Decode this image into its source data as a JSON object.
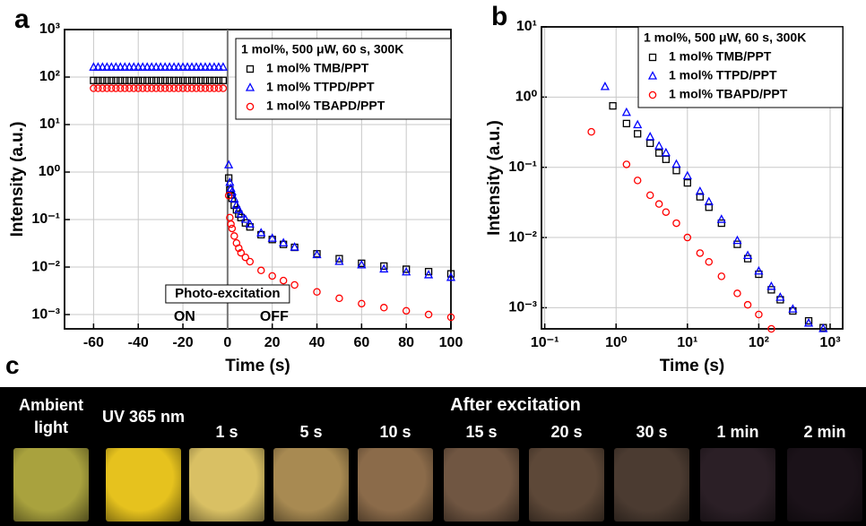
{
  "chart_data": [
    {
      "type": "scatter",
      "panel_label": "a",
      "x_label": "Time (s)",
      "y_label": "Intensity (a.u.)",
      "legend_title": "1 mol%, 500 μW, 60 s, 300K",
      "legend": "upper right",
      "grid": true,
      "ylog": true,
      "xlog": false,
      "annotations": [
        "Photo-excitation",
        "ON",
        "OFF"
      ],
      "vline_x": 0,
      "xlim": [
        -73,
        100
      ],
      "xticks": [
        -60,
        -40,
        -20,
        0,
        20,
        40,
        60,
        80,
        100
      ],
      "ylim": [
        0.0005,
        1000
      ],
      "yticks": [
        {
          "value": 0.001,
          "label": "10⁻³"
        },
        {
          "value": 0.01,
          "label": "10⁻²"
        },
        {
          "value": 0.1,
          "label": "10⁻¹"
        },
        {
          "value": 1,
          "label": "10⁰"
        },
        {
          "value": 10,
          "label": "10¹"
        },
        {
          "value": 100,
          "label": "10²"
        },
        {
          "value": 1000,
          "label": "10³"
        }
      ],
      "x": [
        -60,
        -58,
        -56,
        -54,
        -52,
        -50,
        -48,
        -46,
        -44,
        -42,
        -40,
        -38,
        -36,
        -34,
        -32,
        -30,
        -28,
        -26,
        -24,
        -22,
        -20,
        -18,
        -16,
        -14,
        -12,
        -10,
        -8,
        -6,
        -4,
        -2,
        0.5,
        1,
        1.5,
        2,
        3,
        4,
        5,
        6,
        8,
        10,
        15,
        20,
        25,
        30,
        40,
        50,
        60,
        70,
        80,
        90,
        100
      ],
      "series": [
        {
          "name": "1 mol% TMB/PPT",
          "color": "#000000",
          "marker": "square",
          "values": [
            85,
            85,
            85,
            85,
            85,
            85,
            85,
            85,
            85,
            85,
            85,
            85,
            85,
            85,
            85,
            85,
            85,
            85,
            85,
            85,
            85,
            85,
            85,
            85,
            85,
            85,
            85,
            85,
            85,
            85,
            0.75,
            0.42,
            0.33,
            0.28,
            0.2,
            0.16,
            0.13,
            0.11,
            0.085,
            0.07,
            0.048,
            0.038,
            0.03,
            0.026,
            0.019,
            0.015,
            0.012,
            0.0105,
            0.009,
            0.008,
            0.0072
          ]
        },
        {
          "name": "1 mol% TTPD/PPT",
          "color": "#0000ff",
          "marker": "triangle",
          "values": [
            160,
            160,
            160,
            160,
            160,
            160,
            160,
            160,
            160,
            160,
            160,
            160,
            160,
            160,
            160,
            160,
            160,
            160,
            160,
            160,
            160,
            160,
            160,
            160,
            160,
            160,
            160,
            160,
            160,
            160,
            1.4,
            0.6,
            0.45,
            0.38,
            0.27,
            0.2,
            0.16,
            0.13,
            0.1,
            0.08,
            0.052,
            0.04,
            0.032,
            0.026,
            0.018,
            0.013,
            0.011,
            0.009,
            0.0078,
            0.0068,
            0.006
          ]
        },
        {
          "name": "1 mol% TBAPD/PPT",
          "color": "#ff0000",
          "marker": "circle",
          "values": [
            58,
            58,
            58,
            58,
            58,
            58,
            58,
            58,
            58,
            58,
            58,
            58,
            58,
            58,
            58,
            58,
            58,
            58,
            58,
            58,
            58,
            58,
            58,
            58,
            58,
            58,
            58,
            58,
            58,
            58,
            0.32,
            0.11,
            0.08,
            0.065,
            0.045,
            0.032,
            0.025,
            0.02,
            0.016,
            0.013,
            0.0085,
            0.0065,
            0.0052,
            0.0042,
            0.003,
            0.0022,
            0.0017,
            0.0014,
            0.0012,
            0.001,
            0.00088
          ]
        }
      ]
    },
    {
      "type": "scatter",
      "panel_label": "b",
      "x_label": "Time (s)",
      "y_label": "Intensity (a.u.)",
      "legend_title": "1 mol%, 500 μW, 60 s, 300K",
      "legend": "upper right",
      "grid": true,
      "ylog": true,
      "xlog": true,
      "xlim": [
        0.09,
        1500
      ],
      "xticks": [
        {
          "value": 0.1,
          "label": "10⁻¹"
        },
        {
          "value": 1,
          "label": "10⁰"
        },
        {
          "value": 10,
          "label": "10¹"
        },
        {
          "value": 100,
          "label": "10²"
        },
        {
          "value": 1000,
          "label": "10³"
        }
      ],
      "ylim": [
        0.0005,
        10
      ],
      "yticks": [
        {
          "value": 0.001,
          "label": "10⁻³"
        },
        {
          "value": 0.01,
          "label": "10⁻²"
        },
        {
          "value": 0.1,
          "label": "10⁻¹"
        },
        {
          "value": 1,
          "label": "10⁰"
        },
        {
          "value": 10,
          "label": "10¹"
        }
      ],
      "x": [
        0.45,
        0.7,
        0.9,
        1.4,
        2,
        3,
        4,
        5,
        7,
        10,
        15,
        20,
        30,
        50,
        70,
        100,
        150,
        200,
        300,
        500,
        800
      ],
      "series": [
        {
          "name": "1 mol% TMB/PPT",
          "color": "#000000",
          "marker": "square",
          "values": [
            null,
            null,
            0.75,
            0.42,
            0.3,
            0.22,
            0.16,
            0.13,
            0.09,
            0.06,
            0.038,
            0.027,
            0.016,
            0.008,
            0.005,
            0.003,
            0.0018,
            0.0013,
            0.0009,
            0.00065,
            0.00052
          ]
        },
        {
          "name": "1 mol% TTPD/PPT",
          "color": "#0000ff",
          "marker": "triangle",
          "values": [
            null,
            1.4,
            null,
            0.6,
            0.4,
            0.27,
            0.2,
            0.16,
            0.11,
            0.075,
            0.045,
            0.032,
            0.018,
            0.009,
            0.0055,
            0.0033,
            0.002,
            0.0014,
            0.00095,
            0.0006,
            0.0005
          ]
        },
        {
          "name": "1 mol% TBAPD/PPT",
          "color": "#ff0000",
          "marker": "circle",
          "values": [
            0.32,
            null,
            null,
            0.11,
            0.065,
            0.04,
            0.03,
            0.023,
            0.016,
            0.01,
            0.006,
            0.0045,
            0.0028,
            0.0016,
            0.0011,
            0.0008,
            0.0005,
            null,
            null,
            null,
            null
          ]
        }
      ]
    }
  ],
  "photo_panel": {
    "panel_label": "c",
    "heading": "After excitation",
    "tiles": [
      "Ambient light",
      "UV 365 nm",
      "1 s",
      "5 s",
      "10 s",
      "15 s",
      "20 s",
      "30 s",
      "1 min",
      "2 min"
    ]
  }
}
